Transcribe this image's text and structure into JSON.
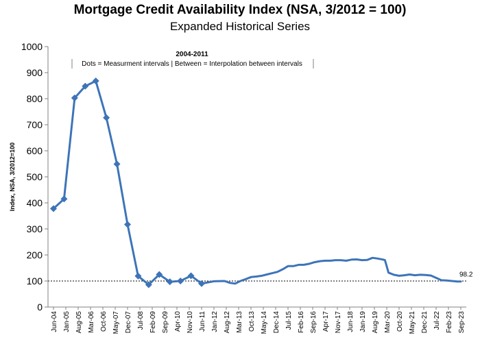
{
  "chart_data": {
    "type": "line",
    "title": "Mortgage Credit Availability Index (NSA, 3/2012 = 100)",
    "subtitle": "Expanded Historical Series",
    "ylabel": "Index, NSA, 3/2012=100",
    "xlabel": "",
    "ylim": [
      0,
      1000
    ],
    "y_ticks": [
      0,
      100,
      200,
      300,
      400,
      500,
      600,
      700,
      800,
      900,
      1000
    ],
    "x_range": [
      "Jun-04",
      "Sep-23"
    ],
    "x_tick_labels": [
      "Jun-04",
      "Jan-05",
      "Aug-05",
      "Mar-06",
      "Oct-06",
      "May-07",
      "Dec-07",
      "Jul-08",
      "Feb-09",
      "Sep-09",
      "Apr-10",
      "Nov-10",
      "Jun-11",
      "Jan-12",
      "Aug-12",
      "Mar-13",
      "Oct-13",
      "May-14",
      "Dec-14",
      "Jul-15",
      "Feb-16",
      "Sep-16",
      "Apr-17",
      "Nov-17",
      "Jun-18",
      "Jan-19",
      "Aug-19",
      "Mar-20",
      "Oct-20",
      "May-21",
      "Dec-21",
      "Jul-22",
      "Feb-23",
      "Sep-23"
    ],
    "reference_line": {
      "value": 100,
      "style": "dotted"
    },
    "end_label": "98.2",
    "annotation": {
      "title": "2004-2011",
      "text": "Dots = Measurment intervals  |  Between = Interpolation between intervals"
    },
    "series": [
      {
        "color": "#3d74b8",
        "points": [
          [
            "Jun-04",
            378
          ],
          [
            "Dec-04",
            415
          ],
          [
            "Jun-05",
            803
          ],
          [
            "Dec-05",
            848
          ],
          [
            "Jun-06",
            868
          ],
          [
            "Dec-06",
            727
          ],
          [
            "Jun-07",
            549
          ],
          [
            "Dec-07",
            317
          ],
          [
            "Jun-08",
            119
          ],
          [
            "Dec-08",
            86
          ],
          [
            "Jun-09",
            125
          ],
          [
            "Dec-09",
            97
          ],
          [
            "Jun-10",
            100
          ],
          [
            "Dec-10",
            120
          ],
          [
            "Jun-11",
            90
          ],
          [
            "Jan-12",
            99
          ],
          [
            "Jul-12",
            100
          ],
          [
            "Oct-12",
            93
          ],
          [
            "Jan-13",
            90
          ],
          [
            "Apr-13",
            100
          ],
          [
            "Jul-13",
            107
          ],
          [
            "Oct-13",
            115
          ],
          [
            "Jan-14",
            117
          ],
          [
            "Apr-14",
            120
          ],
          [
            "Jul-14",
            125
          ],
          [
            "Oct-14",
            130
          ],
          [
            "Jan-15",
            135
          ],
          [
            "Apr-15",
            145
          ],
          [
            "Jul-15",
            157
          ],
          [
            "Oct-15",
            157
          ],
          [
            "Jan-16",
            162
          ],
          [
            "Apr-16",
            162
          ],
          [
            "Jul-16",
            166
          ],
          [
            "Oct-16",
            172
          ],
          [
            "Jan-17",
            176
          ],
          [
            "Apr-17",
            178
          ],
          [
            "Jul-17",
            178
          ],
          [
            "Oct-17",
            180
          ],
          [
            "Jan-18",
            180
          ],
          [
            "Apr-18",
            178
          ],
          [
            "Jul-18",
            182
          ],
          [
            "Oct-18",
            183
          ],
          [
            "Jan-19",
            180
          ],
          [
            "Apr-19",
            181
          ],
          [
            "Jul-19",
            189
          ],
          [
            "Oct-19",
            186
          ],
          [
            "Jan-20",
            182
          ],
          [
            "Feb-20",
            180
          ],
          [
            "Apr-20",
            132
          ],
          [
            "Jul-20",
            124
          ],
          [
            "Oct-20",
            120
          ],
          [
            "Jan-21",
            122
          ],
          [
            "Apr-21",
            125
          ],
          [
            "Jul-21",
            122
          ],
          [
            "Oct-21",
            124
          ],
          [
            "Jan-22",
            123
          ],
          [
            "Apr-22",
            121
          ],
          [
            "Jul-22",
            112
          ],
          [
            "Oct-22",
            103
          ],
          [
            "Jan-23",
            102
          ],
          [
            "Apr-23",
            100
          ],
          [
            "Jul-23",
            98
          ],
          [
            "Sep-23",
            98.2
          ]
        ],
        "markers": [
          [
            "Jun-04",
            378
          ],
          [
            "Dec-04",
            415
          ],
          [
            "Jun-05",
            803
          ],
          [
            "Dec-05",
            848
          ],
          [
            "Jun-06",
            868
          ],
          [
            "Dec-06",
            727
          ],
          [
            "Jun-07",
            549
          ],
          [
            "Dec-07",
            317
          ],
          [
            "Jun-08",
            119
          ],
          [
            "Dec-08",
            86
          ],
          [
            "Jun-09",
            125
          ],
          [
            "Dec-09",
            97
          ],
          [
            "Jun-10",
            100
          ],
          [
            "Dec-10",
            120
          ],
          [
            "Jun-11",
            90
          ]
        ]
      }
    ]
  }
}
